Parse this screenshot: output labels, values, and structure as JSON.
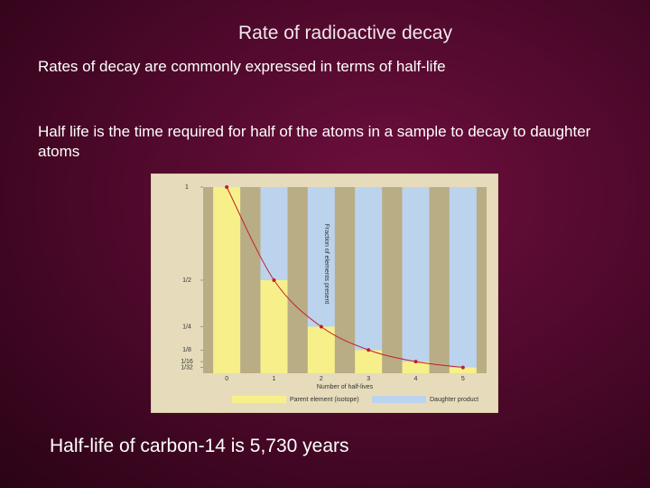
{
  "slide": {
    "title": "Rate of radioactive decay",
    "paragraphs": [
      "Rates of decay are commonly expressed in terms of half-life",
      "Half life is the time required for half of the atoms in a sample to decay to daughter atoms"
    ],
    "footer": "Half-life of carbon-14 is 5,730 years"
  },
  "chart_data": {
    "type": "bar",
    "stacked": true,
    "x_label": "Number of half-lives",
    "y_label": "Fraction of elements present",
    "categories": [
      "0",
      "1",
      "2",
      "3",
      "4",
      "5"
    ],
    "series": [
      {
        "name": "Parent element (isotope)",
        "color": "#f7f08a",
        "values": [
          1,
          0.5,
          0.25,
          0.125,
          0.0625,
          0.03125
        ]
      },
      {
        "name": "Daughter product",
        "color": "#bcd3ee",
        "values": [
          0,
          0.5,
          0.75,
          0.875,
          0.9375,
          0.96875
        ]
      }
    ],
    "curve_color": "#c0202a",
    "ylim": [
      0,
      1
    ],
    "yticks": [
      1,
      {
        "value": 0.5,
        "label": "1/2"
      },
      {
        "value": 0.25,
        "label": "1/4"
      },
      {
        "value": 0.125,
        "label": "1/8"
      },
      {
        "value": 0.0625,
        "label": "1/16"
      },
      {
        "value": 0.03125,
        "label": "1/32"
      }
    ]
  }
}
